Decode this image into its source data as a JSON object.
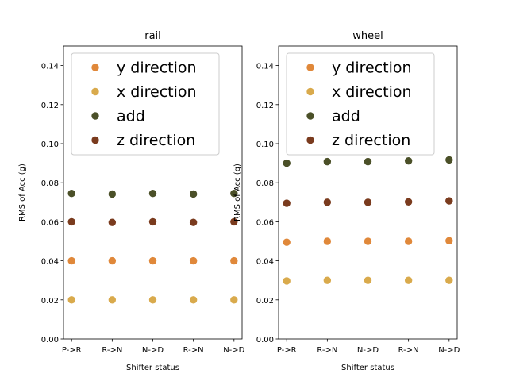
{
  "chart_data": [
    {
      "type": "scatter",
      "title": "rail",
      "xlabel": "Shifter status",
      "ylabel": "RMS of Acc (g)",
      "categories": [
        "P->R",
        "R->N",
        "N->D",
        "R->N",
        "N->D"
      ],
      "ylim": [
        0,
        0.15
      ],
      "yticks": [
        "0.00",
        "0.02",
        "0.04",
        "0.06",
        "0.08",
        "0.10",
        "0.12",
        "0.14"
      ],
      "grid": false,
      "legend": "upper-center",
      "series": [
        {
          "name": "y direction",
          "color": "#e0883a",
          "values": [
            0.04,
            0.04,
            0.04,
            0.04,
            0.04
          ]
        },
        {
          "name": "x direction",
          "color": "#d9aa4c",
          "values": [
            0.02,
            0.02,
            0.02,
            0.02,
            0.02
          ]
        },
        {
          "name": "add",
          "color": "#4b5028",
          "values": [
            0.0745,
            0.0742,
            0.0745,
            0.0742,
            0.0745
          ]
        },
        {
          "name": "z direction",
          "color": "#7a3b1e",
          "values": [
            0.06,
            0.0597,
            0.06,
            0.0597,
            0.06
          ]
        }
      ]
    },
    {
      "type": "scatter",
      "title": "wheel",
      "xlabel": "Shifter status",
      "ylabel": "RMS of Acc (g)",
      "categories": [
        "P->R",
        "R->N",
        "N->D",
        "R->N",
        "N->D"
      ],
      "ylim": [
        0,
        0.15
      ],
      "yticks": [
        "0.00",
        "0.02",
        "0.04",
        "0.06",
        "0.08",
        "0.10",
        "0.12",
        "0.14"
      ],
      "grid": false,
      "legend": "upper-center",
      "series": [
        {
          "name": "y direction",
          "color": "#e0883a",
          "values": [
            0.0495,
            0.05,
            0.05,
            0.05,
            0.0503
          ]
        },
        {
          "name": "x direction",
          "color": "#d9aa4c",
          "values": [
            0.0297,
            0.03,
            0.03,
            0.03,
            0.03
          ]
        },
        {
          "name": "add",
          "color": "#4b5028",
          "values": [
            0.09,
            0.0908,
            0.0908,
            0.0912,
            0.0917
          ]
        },
        {
          "name": "z direction",
          "color": "#7a3b1e",
          "values": [
            0.0695,
            0.07,
            0.07,
            0.0702,
            0.0707
          ]
        }
      ]
    }
  ]
}
